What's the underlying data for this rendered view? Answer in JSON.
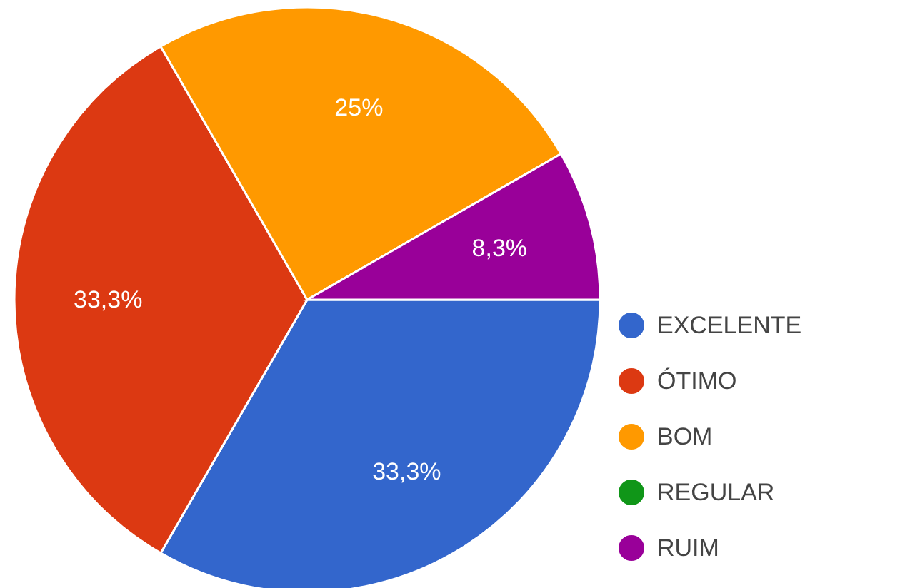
{
  "chart_data": {
    "type": "pie",
    "categories": [
      "EXCELENTE",
      "ÓTIMO",
      "BOM",
      "REGULAR",
      "RUIM"
    ],
    "values": [
      33.3,
      33.3,
      25,
      0,
      8.3
    ],
    "colors": [
      "#3366cc",
      "#dc3912",
      "#ff9900",
      "#109618",
      "#990099"
    ],
    "value_labels": [
      "33,3%",
      "33,3%",
      "25%",
      null,
      "8,3%"
    ],
    "legend": "right"
  }
}
